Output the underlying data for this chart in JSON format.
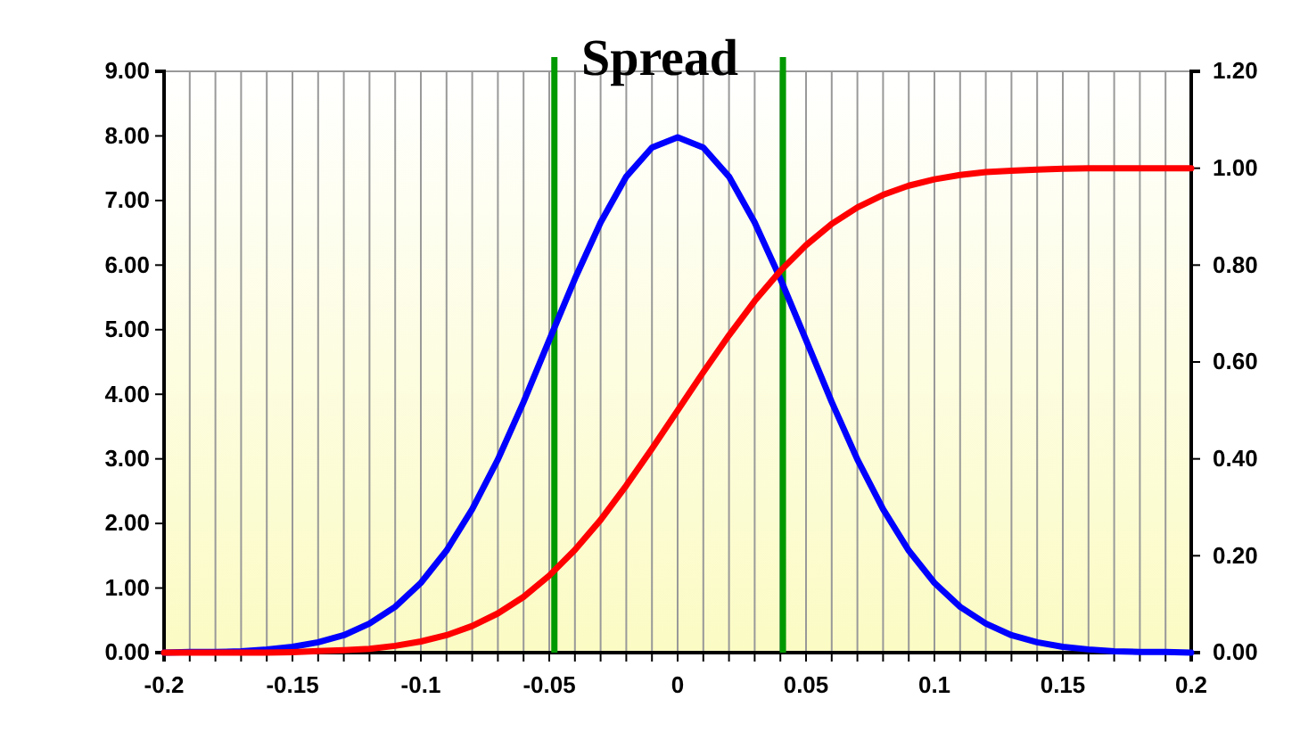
{
  "chart_data": {
    "type": "line",
    "title": "Spread",
    "x": [
      -0.2,
      -0.19,
      -0.18,
      -0.17,
      -0.16,
      -0.15,
      -0.14,
      -0.13,
      -0.12,
      -0.11,
      -0.1,
      -0.09,
      -0.08,
      -0.07,
      -0.06,
      -0.05,
      -0.04,
      -0.03,
      -0.02,
      -0.01,
      0,
      0.01,
      0.02,
      0.03,
      0.04,
      0.05,
      0.06,
      0.07,
      0.08,
      0.09,
      0.1,
      0.11,
      0.12,
      0.13,
      0.14,
      0.15,
      0.16,
      0.17,
      0.18,
      0.19,
      0.2
    ],
    "series": [
      {
        "color": "#0000ff",
        "values": [
          0.0,
          0.01,
          0.01,
          0.02,
          0.05,
          0.09,
          0.16,
          0.27,
          0.45,
          0.71,
          1.08,
          1.58,
          2.22,
          2.99,
          3.88,
          4.84,
          5.79,
          6.66,
          7.37,
          7.82,
          7.98,
          7.82,
          7.37,
          6.66,
          5.79,
          4.84,
          3.88,
          2.99,
          2.22,
          1.58,
          1.08,
          0.71,
          0.45,
          0.27,
          0.16,
          0.09,
          0.05,
          0.02,
          0.01,
          0.01,
          0.0
        ]
      },
      {
        "color": "#ff0000",
        "axis": "y2",
        "values": [
          0.0,
          0.0,
          0.0,
          0.0,
          0.0,
          0.001,
          0.003,
          0.005,
          0.008,
          0.014,
          0.023,
          0.036,
          0.055,
          0.081,
          0.115,
          0.159,
          0.212,
          0.274,
          0.345,
          0.421,
          0.5,
          0.579,
          0.655,
          0.726,
          0.788,
          0.841,
          0.885,
          0.919,
          0.945,
          0.964,
          0.977,
          0.986,
          0.992,
          0.995,
          0.997,
          0.999,
          1.0,
          1.0,
          1.0,
          1.0,
          1.0
        ]
      }
    ],
    "xlim": [
      -0.2,
      0.2
    ],
    "xticks": [
      {
        "value": -0.2,
        "label": "-0.2"
      },
      {
        "value": -0.19,
        "label": null
      },
      {
        "value": -0.18,
        "label": null
      },
      {
        "value": -0.17,
        "label": null
      },
      {
        "value": -0.16,
        "label": null
      },
      {
        "value": -0.15,
        "label": "-0.15"
      },
      {
        "value": -0.14,
        "label": null
      },
      {
        "value": -0.13,
        "label": null
      },
      {
        "value": -0.12,
        "label": null
      },
      {
        "value": -0.11,
        "label": null
      },
      {
        "value": -0.1,
        "label": "-0.1"
      },
      {
        "value": -0.09,
        "label": null
      },
      {
        "value": -0.08,
        "label": null
      },
      {
        "value": -0.07,
        "label": null
      },
      {
        "value": -0.06,
        "label": null
      },
      {
        "value": -0.05,
        "label": "-0.05"
      },
      {
        "value": -0.04,
        "label": null
      },
      {
        "value": -0.03,
        "label": null
      },
      {
        "value": -0.02,
        "label": null
      },
      {
        "value": -0.01,
        "label": null
      },
      {
        "value": 0,
        "label": "0"
      },
      {
        "value": 0.01,
        "label": null
      },
      {
        "value": 0.02,
        "label": null
      },
      {
        "value": 0.03,
        "label": null
      },
      {
        "value": 0.04,
        "label": null
      },
      {
        "value": 0.05,
        "label": "0.05"
      },
      {
        "value": 0.06,
        "label": null
      },
      {
        "value": 0.07,
        "label": null
      },
      {
        "value": 0.08,
        "label": null
      },
      {
        "value": 0.09,
        "label": null
      },
      {
        "value": 0.1,
        "label": "0.1"
      },
      {
        "value": 0.11,
        "label": null
      },
      {
        "value": 0.12,
        "label": null
      },
      {
        "value": 0.13,
        "label": null
      },
      {
        "value": 0.14,
        "label": null
      },
      {
        "value": 0.15,
        "label": "0.15"
      },
      {
        "value": 0.16,
        "label": null
      },
      {
        "value": 0.17,
        "label": null
      },
      {
        "value": 0.18,
        "label": null
      },
      {
        "value": 0.19,
        "label": null
      },
      {
        "value": 0.2,
        "label": "0.2"
      }
    ],
    "ylim": [
      0,
      9
    ],
    "yticks": [
      {
        "value": 0,
        "label": "0.00"
      },
      {
        "value": 1,
        "label": "1.00"
      },
      {
        "value": 2,
        "label": "2.00"
      },
      {
        "value": 3,
        "label": "3.00"
      },
      {
        "value": 4,
        "label": "4.00"
      },
      {
        "value": 5,
        "label": "5.00"
      },
      {
        "value": 6,
        "label": "6.00"
      },
      {
        "value": 7,
        "label": "7.00"
      },
      {
        "value": 8,
        "label": "8.00"
      },
      {
        "value": 9,
        "label": "9.00"
      }
    ],
    "y2lim": [
      0,
      1.2
    ],
    "y2ticks": [
      {
        "value": 0,
        "label": "0.00"
      },
      {
        "value": 0.2,
        "label": "0.20"
      },
      {
        "value": 0.4,
        "label": "0.40"
      },
      {
        "value": 0.6,
        "label": "0.60"
      },
      {
        "value": 0.8,
        "label": "0.80"
      },
      {
        "value": 1,
        "label": "1.00"
      },
      {
        "value": 1.2,
        "label": "1.20"
      }
    ],
    "grid": "x",
    "marker": "none",
    "line_style": "solid",
    "ref_lines": [
      {
        "axis": "x",
        "value": -0.048,
        "color": "#009900"
      },
      {
        "axis": "x",
        "value": 0.041,
        "color": "#009900"
      }
    ]
  }
}
